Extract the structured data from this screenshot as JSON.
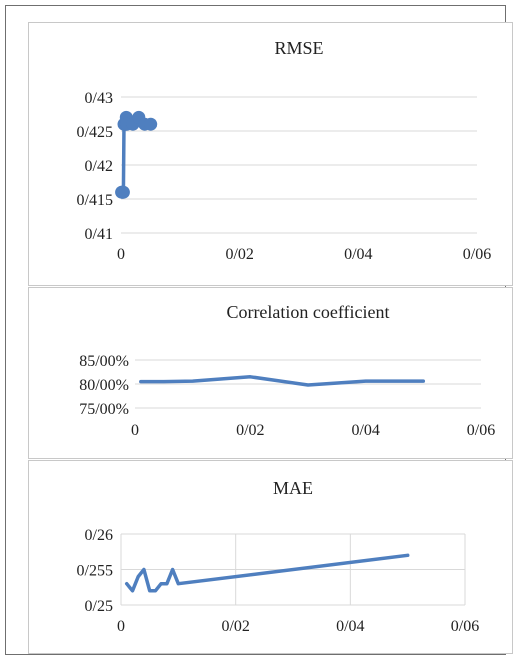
{
  "chart_data": [
    {
      "type": "line",
      "title": "RMSE",
      "xlabel": "",
      "ylabel": "",
      "xlim": [
        0,
        0.06
      ],
      "ylim": [
        0.41,
        0.43
      ],
      "x_ticks": [
        "0",
        "0/02",
        "0/04",
        "0/06"
      ],
      "y_ticks": [
        "0/43",
        "0/425",
        "0/42",
        "0/415",
        "0/41"
      ],
      "markers": true,
      "grid": "horizontal",
      "color": "#4f7fbf",
      "series": [
        {
          "x": [
            0.0001,
            0.0002,
            0.0003,
            0.0004,
            0.0005,
            0.0006,
            0.0007,
            0.0008,
            0.0009,
            0.001,
            0.002,
            0.003,
            0.004,
            0.005
          ],
          "values": [
            0.416,
            0.416,
            0.416,
            0.416,
            0.426,
            0.426,
            0.426,
            0.426,
            0.427,
            0.426,
            0.426,
            0.427,
            0.426,
            0.426
          ]
        }
      ]
    },
    {
      "type": "line",
      "title": "Correlation coefficient",
      "xlabel": "",
      "ylabel": "",
      "xlim": [
        0,
        0.06
      ],
      "ylim": [
        0.75,
        0.85
      ],
      "x_ticks": [
        "0",
        "0/02",
        "0/04",
        "0/06"
      ],
      "y_ticks": [
        "85/00%",
        "80/00%",
        "75/00%"
      ],
      "markers": false,
      "grid": "horizontal",
      "color": "#4f7fbf",
      "series": [
        {
          "x": [
            0.001,
            0.005,
            0.01,
            0.02,
            0.03,
            0.04,
            0.05
          ],
          "values": [
            0.805,
            0.805,
            0.806,
            0.815,
            0.798,
            0.806,
            0.806
          ]
        }
      ]
    },
    {
      "type": "line",
      "title": "MAE",
      "xlabel": "",
      "ylabel": "",
      "xlim": [
        0,
        0.06
      ],
      "ylim": [
        0.25,
        0.26
      ],
      "x_ticks": [
        "0",
        "0/02",
        "0/04",
        "0/06"
      ],
      "y_ticks": [
        "0/26",
        "0/255",
        "0/25"
      ],
      "markers": false,
      "grid": "both",
      "color": "#4f7fbf",
      "series": [
        {
          "x": [
            0.001,
            0.002,
            0.003,
            0.004,
            0.005,
            0.006,
            0.007,
            0.008,
            0.009,
            0.01,
            0.05
          ],
          "values": [
            0.253,
            0.252,
            0.254,
            0.255,
            0.252,
            0.252,
            0.253,
            0.253,
            0.255,
            0.253,
            0.257
          ]
        }
      ]
    }
  ]
}
